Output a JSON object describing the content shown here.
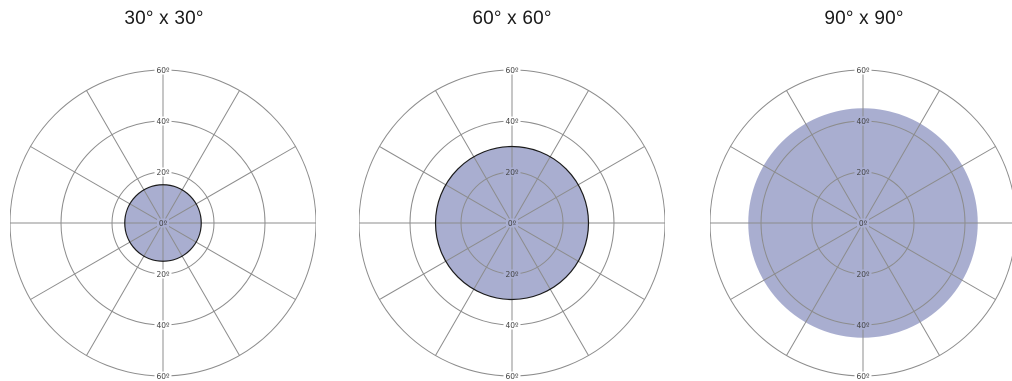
{
  "panels": [
    {
      "title": "30° x 30°",
      "coverage_deg": 15,
      "outlined": true
    },
    {
      "title": "60° x 60°",
      "coverage_deg": 30,
      "outlined": true
    },
    {
      "title": "90° x 90°",
      "coverage_deg": 45,
      "outlined": false
    }
  ],
  "ring_labels_upper": [
    "60º",
    "40º",
    "20º"
  ],
  "ring_labels_lower": [
    "20º",
    "40º",
    "60º"
  ],
  "center_label": "0º",
  "scale_max_deg": 60,
  "colors": {
    "fill": "#a9aed0",
    "grid": "#8c8c8c",
    "outline": "#1a1a1a",
    "text": "#444444"
  }
}
